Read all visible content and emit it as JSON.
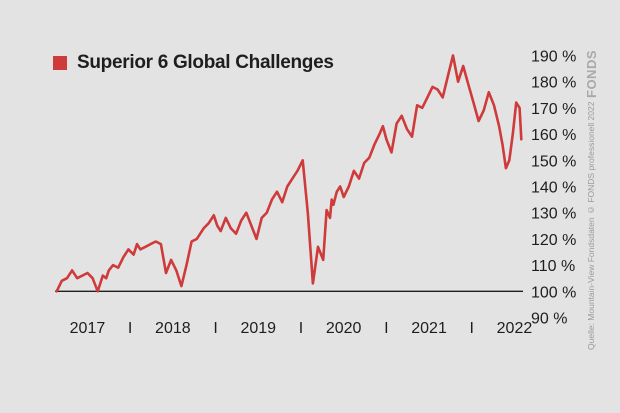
{
  "brand": {
    "logo_text": "FONDS",
    "credit": "Quelle: Mountain-View Fondsdaten  © FONDS professionell 2022"
  },
  "colors": {
    "series": "#cf3a3a",
    "background": "#e3e3e3",
    "text": "#1e1e1e",
    "baseline": "#1e1e1e"
  },
  "chart_data": {
    "type": "line",
    "title": "",
    "xlabel": "",
    "ylabel": "",
    "legend": {
      "placement": "top-left",
      "entries": [
        "Superior 6 Global Challenges"
      ]
    },
    "grid": false,
    "baseline": 100,
    "x_ticks": [
      {
        "x": 2017.0,
        "label": "2017"
      },
      {
        "x": 2017.5,
        "label": "I"
      },
      {
        "x": 2018.0,
        "label": "2018"
      },
      {
        "x": 2018.5,
        "label": "I"
      },
      {
        "x": 2019.0,
        "label": "2019"
      },
      {
        "x": 2019.5,
        "label": "I"
      },
      {
        "x": 2020.0,
        "label": "2020"
      },
      {
        "x": 2020.5,
        "label": "I"
      },
      {
        "x": 2021.0,
        "label": "2021"
      },
      {
        "x": 2021.5,
        "label": "I"
      },
      {
        "x": 2022.0,
        "label": "2022"
      }
    ],
    "xlim": [
      2016.62,
      2022.1
    ],
    "y_ticks": [
      {
        "y": 190,
        "label": "190 %"
      },
      {
        "y": 180,
        "label": "180 %"
      },
      {
        "y": 170,
        "label": "170 %"
      },
      {
        "y": 160,
        "label": "160 %"
      },
      {
        "y": 150,
        "label": "150 %"
      },
      {
        "y": 140,
        "label": "140 %"
      },
      {
        "y": 130,
        "label": "130 %"
      },
      {
        "y": 120,
        "label": "120 %"
      },
      {
        "y": 110,
        "label": "110 %"
      },
      {
        "y": 100,
        "label": "100 %"
      },
      {
        "y": 90,
        "label": "90 %"
      }
    ],
    "ylim": [
      86,
      194
    ],
    "series": [
      {
        "name": "Superior 6 Global Challenges",
        "color": "#cf3a3a",
        "x": [
          2016.64,
          2016.7,
          2016.76,
          2016.82,
          2016.88,
          2016.94,
          2017.0,
          2017.06,
          2017.12,
          2017.18,
          2017.22,
          2017.25,
          2017.3,
          2017.36,
          2017.42,
          2017.48,
          2017.54,
          2017.58,
          2017.62,
          2017.68,
          2017.74,
          2017.8,
          2017.86,
          2017.92,
          2017.98,
          2018.04,
          2018.1,
          2018.16,
          2018.22,
          2018.28,
          2018.32,
          2018.36,
          2018.42,
          2018.48,
          2018.52,
          2018.56,
          2018.62,
          2018.68,
          2018.74,
          2018.8,
          2018.86,
          2018.92,
          2018.98,
          2019.04,
          2019.1,
          2019.16,
          2019.22,
          2019.28,
          2019.34,
          2019.4,
          2019.46,
          2019.52,
          2019.58,
          2019.64,
          2019.7,
          2019.76,
          2019.8,
          2019.84,
          2019.86,
          2019.88,
          2019.92,
          2019.96,
          2020.0,
          2020.06,
          2020.12,
          2020.18,
          2020.24,
          2020.3,
          2020.36,
          2020.42,
          2020.46,
          2020.5,
          2020.56,
          2020.62,
          2020.68,
          2020.74,
          2020.8,
          2020.86,
          2020.92,
          2020.98,
          2021.04,
          2021.1,
          2021.16,
          2021.22,
          2021.28,
          2021.34,
          2021.4,
          2021.46,
          2021.52,
          2021.58,
          2021.64,
          2021.7,
          2021.76,
          2021.82,
          2021.86,
          2021.9,
          2021.94,
          2021.98,
          2022.02,
          2022.06,
          2022.08
        ],
        "y": [
          100,
          104,
          105,
          108,
          105,
          106,
          107,
          105,
          100,
          106,
          105,
          108,
          110,
          109,
          113,
          116,
          114,
          118,
          116,
          117,
          118,
          119,
          118,
          107,
          112,
          108,
          102,
          110,
          119,
          120,
          122,
          124,
          126,
          129,
          125,
          123,
          128,
          124,
          122,
          127,
          130,
          125,
          120,
          128,
          130,
          135,
          138,
          134,
          140,
          143,
          146,
          150,
          130,
          103,
          117,
          112,
          131,
          128,
          135,
          133,
          138,
          140,
          136,
          140,
          146,
          143,
          149,
          151,
          156,
          160,
          163,
          158,
          153,
          164,
          167,
          162,
          159,
          171,
          170,
          174,
          178,
          177,
          174,
          182,
          190,
          180,
          186,
          179,
          172,
          165,
          169,
          176,
          171,
          163,
          156,
          147,
          150,
          160,
          172,
          170,
          158
        ]
      }
    ]
  }
}
